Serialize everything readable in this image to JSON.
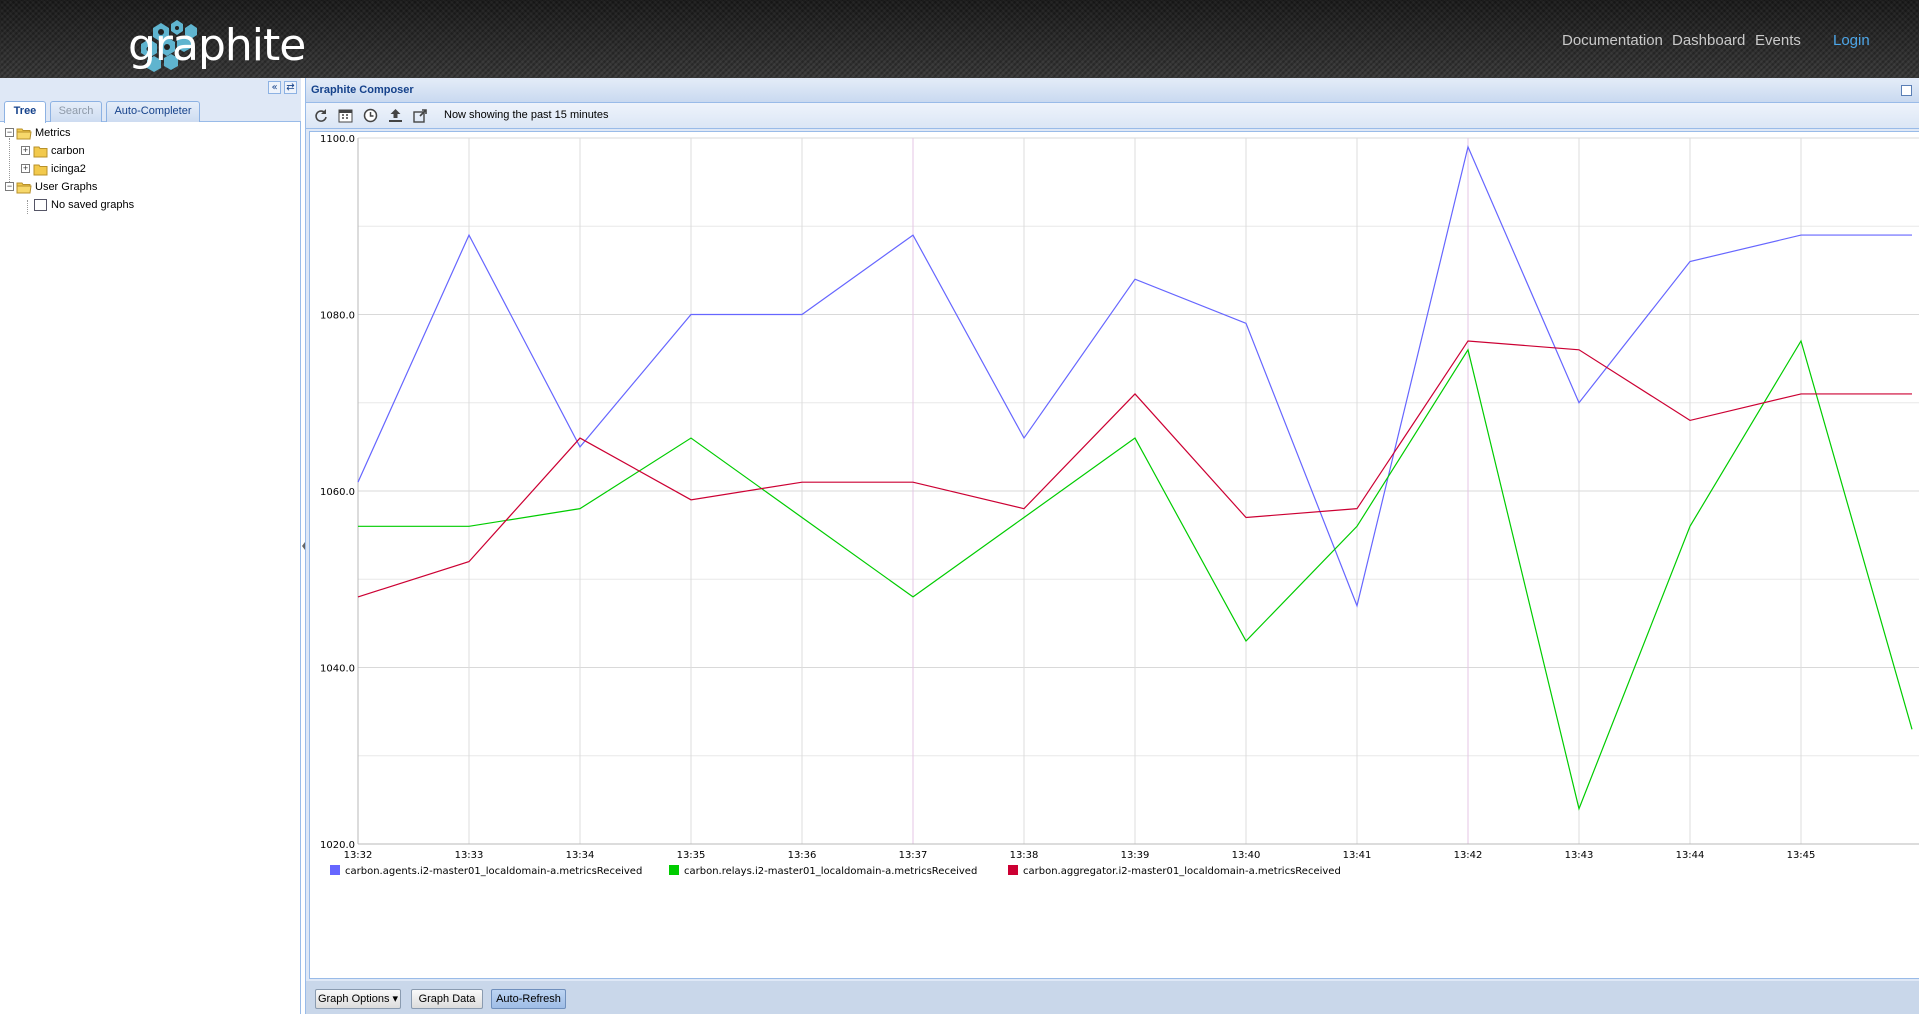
{
  "header": {
    "logo_text": "graphite",
    "nav": [
      {
        "label": "Documentation"
      },
      {
        "label": "Dashboard"
      },
      {
        "label": "Events"
      },
      {
        "label": "Login"
      }
    ]
  },
  "left_panel": {
    "tabs": [
      {
        "label": "Tree",
        "state": "active"
      },
      {
        "label": "Search",
        "state": "disabled"
      },
      {
        "label": "Auto-Completer",
        "state": "normal"
      }
    ],
    "tree": {
      "metrics": {
        "label": "Metrics",
        "children": [
          "carbon",
          "icinga2"
        ]
      },
      "user_graphs": {
        "label": "User Graphs",
        "children": [
          "No saved graphs"
        ]
      }
    }
  },
  "composer": {
    "title": "Graphite Composer",
    "toolbar_icons": [
      "refresh-icon",
      "calendar-icon",
      "clock-icon",
      "upload-icon",
      "share-icon"
    ],
    "status": "Now showing the past 15 minutes",
    "buttons": {
      "graph_options": "Graph Options",
      "graph_data": "Graph Data",
      "auto_refresh": "Auto-Refresh"
    }
  },
  "chart_data": {
    "type": "line",
    "x": [
      "13:32",
      "13:33",
      "13:34",
      "13:35",
      "13:36",
      "13:37",
      "13:38",
      "13:39",
      "13:40",
      "13:41",
      "13:42",
      "13:43",
      "13:44",
      "13:45",
      "13:46"
    ],
    "xticks": [
      "13:32",
      "13:33",
      "13:34",
      "13:35",
      "13:36",
      "13:37",
      "13:38",
      "13:39",
      "13:40",
      "13:41",
      "13:42",
      "13:43",
      "13:44",
      "13:45"
    ],
    "ylim": [
      1020,
      1100
    ],
    "yticks": [
      "1020.0",
      "1040.0",
      "1060.0",
      "1080.0",
      "1100.0"
    ],
    "grid": true,
    "legend_position": "bottom",
    "series": [
      {
        "name": "carbon.agents.i2-master01_localdomain-a.metricsReceived",
        "color": "#6666ff",
        "values": [
          1061,
          1089,
          1065,
          1080,
          1080,
          1089,
          1066,
          1084,
          1079,
          1047,
          1099,
          1070,
          1086,
          1089,
          1089
        ]
      },
      {
        "name": "carbon.relays.i2-master01_localdomain-a.metricsReceived",
        "color": "#00cc00",
        "values": [
          1056,
          1056,
          1058,
          1066,
          1057,
          1048,
          1057,
          1066,
          1043,
          1056,
          1076,
          1024,
          1056,
          1077,
          1033
        ]
      },
      {
        "name": "carbon.aggregator.i2-master01_localdomain-a.metricsReceived",
        "color": "#cc0033",
        "values": [
          1048,
          1052,
          1066,
          1059,
          1061,
          1061,
          1058,
          1071,
          1057,
          1058,
          1077,
          1076,
          1068,
          1071,
          1071
        ]
      }
    ]
  }
}
